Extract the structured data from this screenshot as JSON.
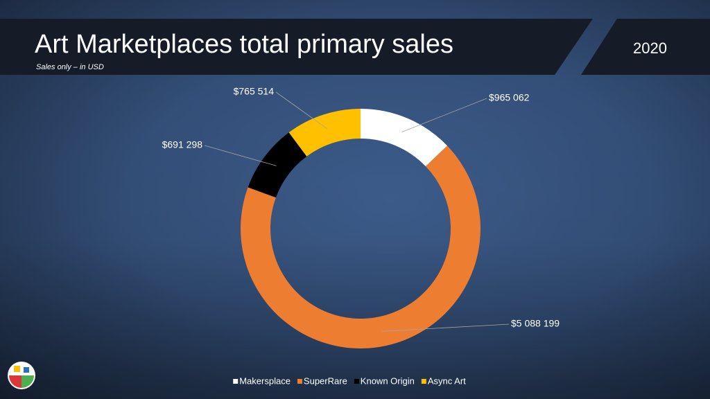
{
  "chart_data": {
    "type": "donut",
    "title": "Art Marketplaces total primary sales",
    "subtitle": "Sales only – in USD",
    "year": "2020",
    "categories": [
      "Makersplace",
      "SuperRare",
      "Known Origin",
      "Async Art"
    ],
    "values": [
      965062,
      5088199,
      691298,
      765514
    ],
    "value_labels": [
      "$965 062",
      "$5 088 199",
      "$691 298",
      "$765 514"
    ],
    "colors": [
      "#ffffff",
      "#ed7d31",
      "#000000",
      "#ffc000"
    ]
  }
}
